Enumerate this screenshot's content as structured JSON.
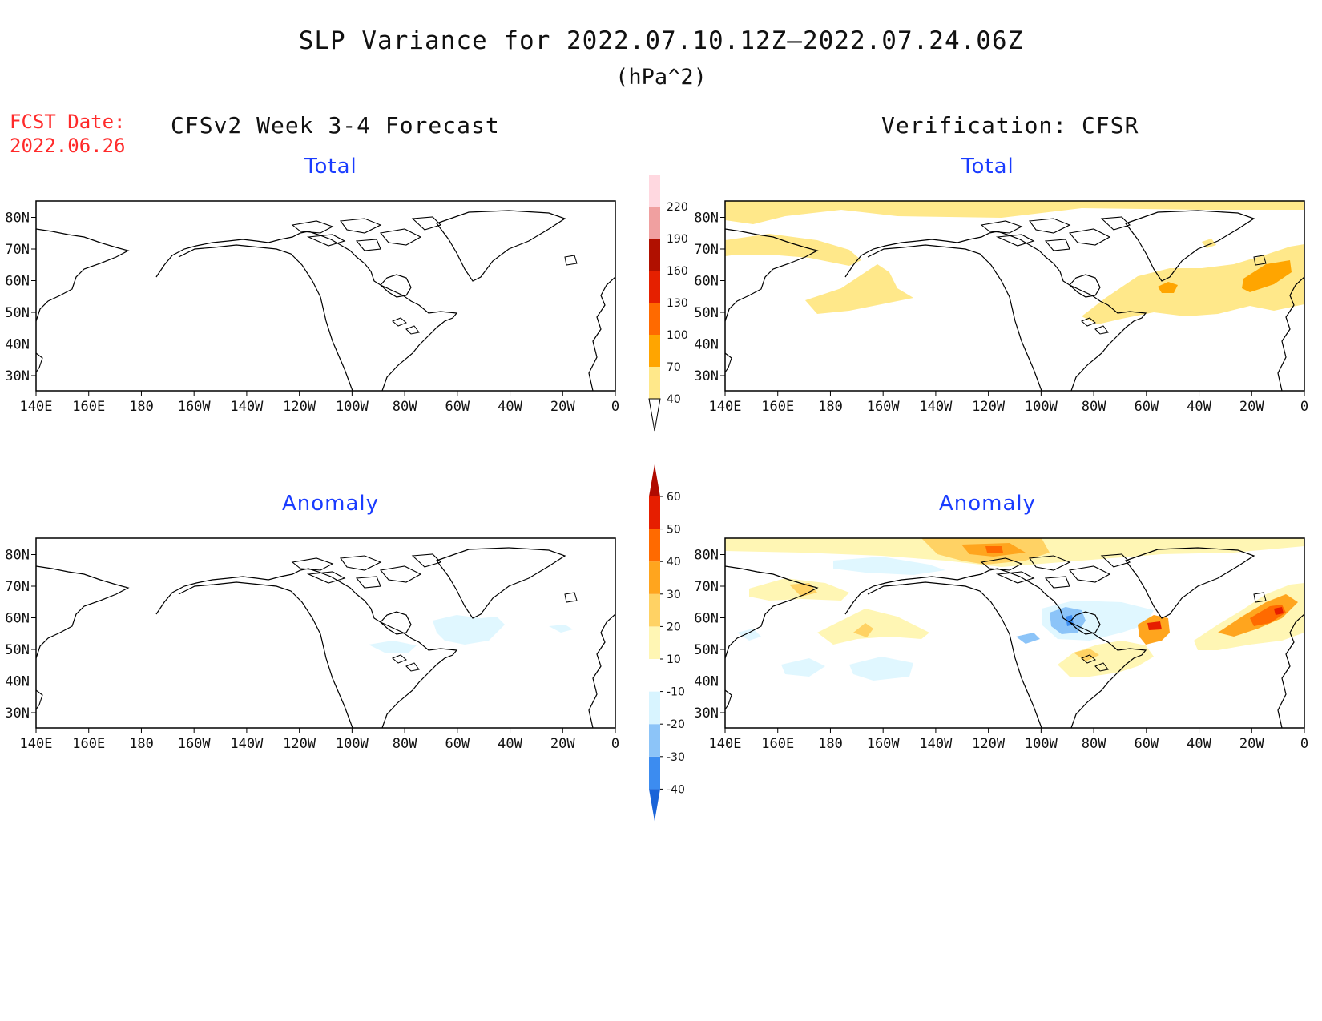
{
  "title": "SLP Variance for 2022.07.10.12Z—2022.07.24.06Z",
  "units": "(hPa^2)",
  "fcst_date_label": "FCST Date:",
  "fcst_date_value": "2022.06.26",
  "left_heading": "CFSv2 Week 3-4 Forecast",
  "right_heading": "Verification: CFSR",
  "panel_titles": {
    "total": "Total",
    "anomaly": "Anomaly"
  },
  "axes": {
    "lon_labels": [
      "140E",
      "160E",
      "180",
      "160W",
      "140W",
      "120W",
      "100W",
      "80W",
      "60W",
      "40W",
      "20W",
      "0"
    ],
    "lat_labels": [
      "30N",
      "40N",
      "50N",
      "60N",
      "70N",
      "80N"
    ]
  },
  "colorbars": {
    "total": {
      "levels": [
        "40",
        "70",
        "100",
        "130",
        "160",
        "190",
        "220"
      ],
      "colors": [
        "#ffe88a",
        "#ffa500",
        "#ff6a00",
        "#e52000",
        "#b01000",
        "#f0a0a0",
        "#ffd8e0",
        "#fff0f5"
      ]
    },
    "anomaly": {
      "levels": [
        "-40",
        "-30",
        "-20",
        "-10",
        "10",
        "20",
        "30",
        "40",
        "50",
        "60"
      ],
      "colors": [
        "#1a64d8",
        "#3c8cf0",
        "#8cc4f8",
        "#d8f4ff",
        "#ffffff",
        "#fff6b4",
        "#ffd264",
        "#ffa51e",
        "#ff6a00",
        "#e61e00",
        "#b00a00"
      ]
    }
  },
  "fields_note_colors": {
    "yellow": "#ffe88a",
    "orange": "#ffa500",
    "light_blue": "#e0f7ff",
    "blue": "#8cc4f8",
    "dark_blue": "#3c8cf0",
    "red": "#e52000"
  }
}
